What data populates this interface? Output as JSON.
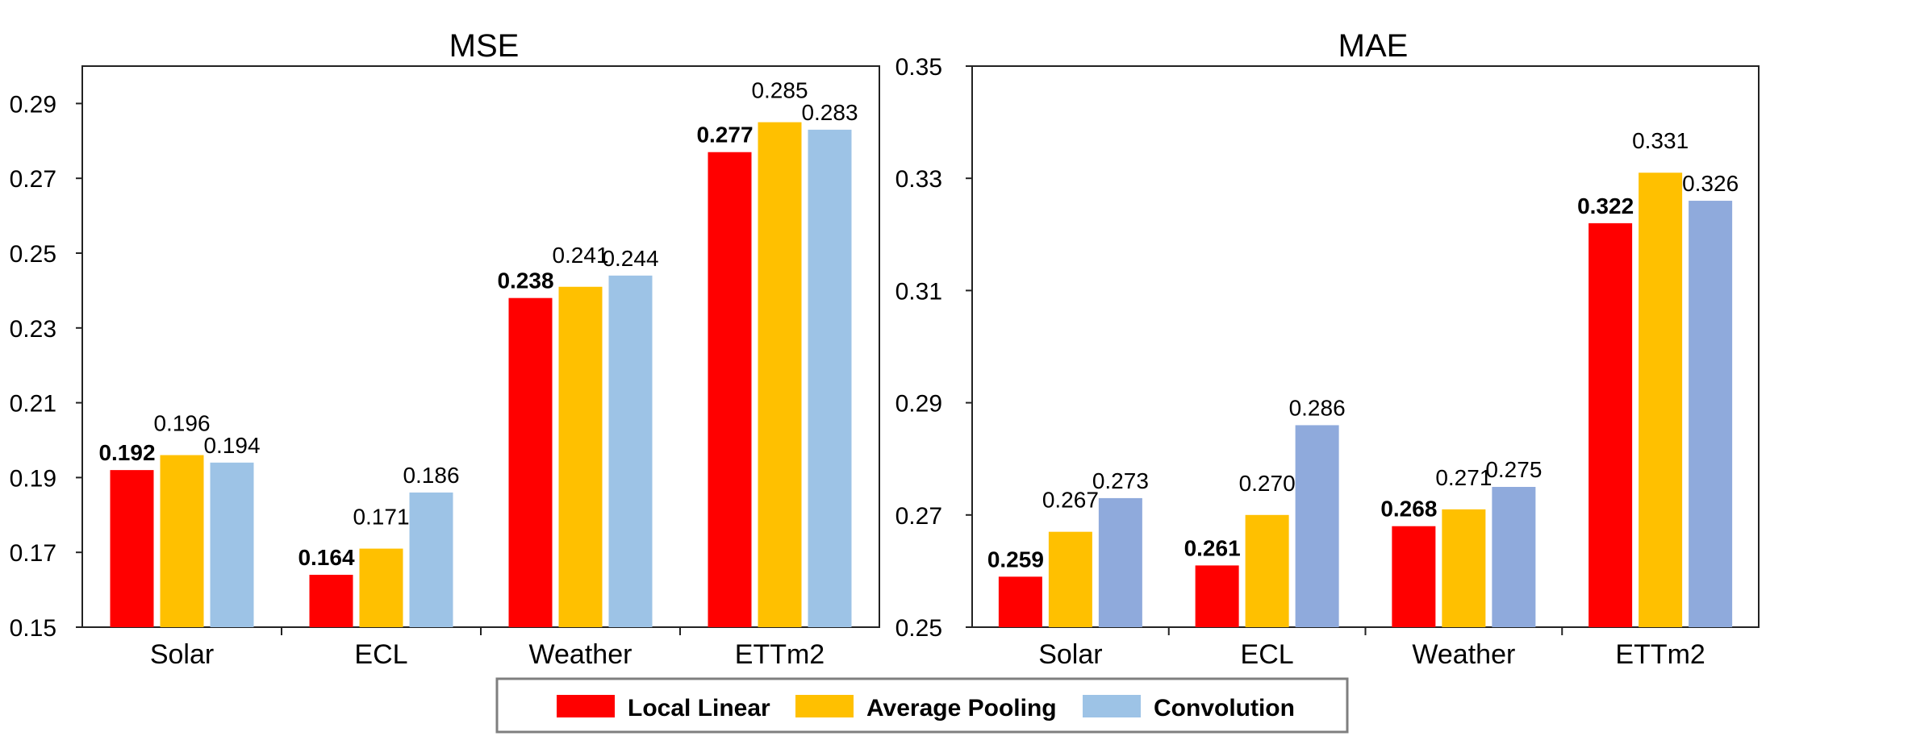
{
  "chart_data": [
    {
      "type": "bar",
      "title": "MSE",
      "categories": [
        "Solar",
        "ECL",
        "Weather",
        "ETTm2"
      ],
      "ylim": [
        0.15,
        0.3
      ],
      "yticks": [
        "0.15",
        "0.17",
        "0.19",
        "0.21",
        "0.23",
        "0.25",
        "0.27",
        "0.29"
      ],
      "series": [
        {
          "name": "Local Linear",
          "color": "#ff0000",
          "values": [
            0.192,
            0.164,
            0.238,
            0.277
          ],
          "labels": [
            "0.192",
            "0.164",
            "0.238",
            "0.277"
          ],
          "bold_labels": true
        },
        {
          "name": "Average Pooling",
          "color": "#ffc000",
          "values": [
            0.196,
            0.171,
            0.241,
            0.285
          ],
          "labels": [
            "0.196",
            "0.171",
            "0.241",
            "0.285"
          ],
          "bold_labels": false
        },
        {
          "name": "Convolution",
          "color": "#9dc3e6",
          "values": [
            0.194,
            0.186,
            0.244,
            0.283
          ],
          "labels": [
            "0.194",
            "0.186",
            "0.244",
            "0.283"
          ],
          "bold_labels": false
        }
      ],
      "grid": false
    },
    {
      "type": "bar",
      "title": "MAE",
      "categories": [
        "Solar",
        "ECL",
        "Weather",
        "ETTm2"
      ],
      "ylim": [
        0.25,
        0.35
      ],
      "yticks": [
        "0.25",
        "0.27",
        "0.29",
        "0.31",
        "0.33",
        "0.35"
      ],
      "series": [
        {
          "name": "Local Linear",
          "color": "#ff0000",
          "values": [
            0.259,
            0.261,
            0.268,
            0.322
          ],
          "labels": [
            "0.259",
            "0.261",
            "0.268",
            "0.322"
          ],
          "bold_labels": true
        },
        {
          "name": "Average Pooling",
          "color": "#ffc000",
          "values": [
            0.267,
            0.27,
            0.271,
            0.331
          ],
          "labels": [
            "0.267",
            "0.270",
            "0.271",
            "0.331"
          ],
          "bold_labels": false
        },
        {
          "name": "Convolution",
          "color": "#8faadc",
          "values": [
            0.273,
            0.286,
            0.275,
            0.326
          ],
          "labels": [
            "0.273",
            "0.286",
            "0.275",
            "0.326"
          ],
          "bold_labels": false
        }
      ],
      "grid": false
    }
  ],
  "legend": {
    "placement": "bottom-center",
    "items": [
      {
        "label": "Local Linear",
        "color": "#ff0000"
      },
      {
        "label": "Average Pooling",
        "color": "#ffc000"
      },
      {
        "label": "Convolution",
        "color": "#9dc3e6"
      }
    ]
  }
}
